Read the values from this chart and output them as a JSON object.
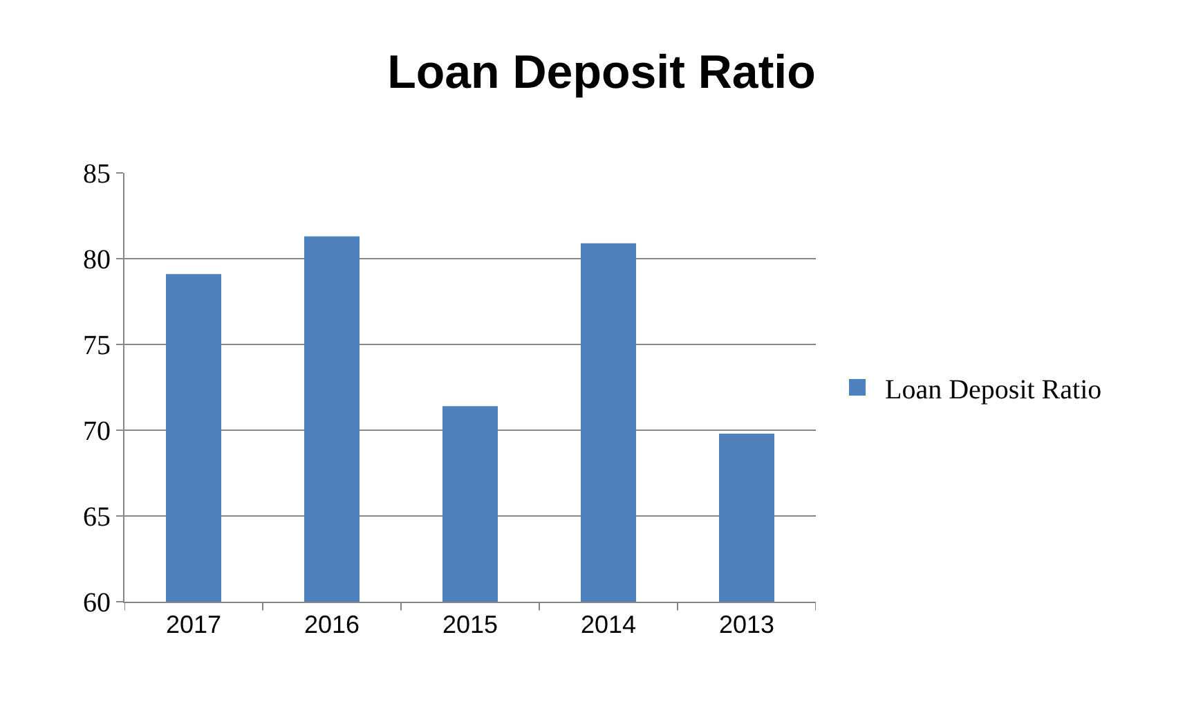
{
  "chart_data": {
    "type": "bar",
    "title": "Loan Deposit Ratio",
    "categories": [
      "2017",
      "2016",
      "2015",
      "2014",
      "2013"
    ],
    "series": [
      {
        "name": "Loan Deposit Ratio",
        "color": "#4f81bd",
        "values": [
          79.1,
          81.3,
          71.4,
          80.9,
          69.8
        ]
      }
    ],
    "ylim": [
      60,
      85
    ],
    "yticks": [
      60,
      65,
      70,
      75,
      80,
      85
    ],
    "grid": "y",
    "legend": "right"
  }
}
